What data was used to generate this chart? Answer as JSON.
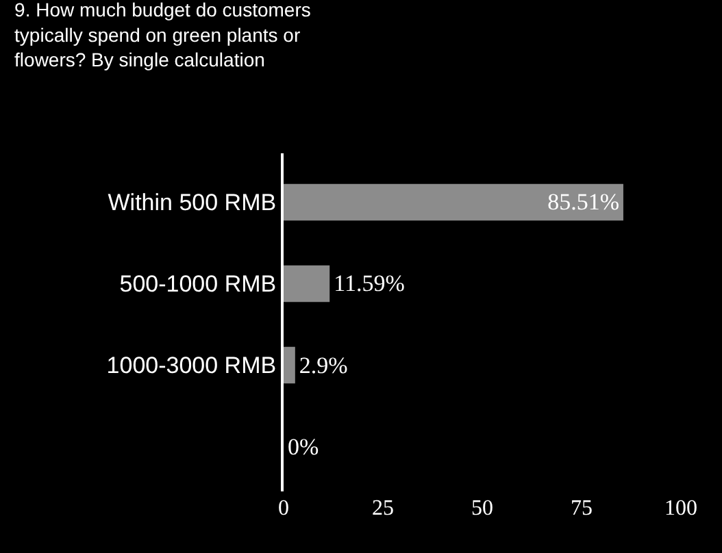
{
  "chart_data": {
    "type": "bar",
    "orientation": "horizontal",
    "title": "9. How much budget do customers\ntypically spend on green plants or\nflowers? By single calculation",
    "categories": [
      "Within 500 RMB",
      "500-1000 RMB",
      "1000-3000 RMB",
      null
    ],
    "values": [
      85.51,
      11.59,
      2.9,
      0
    ],
    "value_labels": [
      "85.51%",
      "11.59%",
      "2.9%",
      "0%"
    ],
    "color": "#8c8c8c",
    "xlim": [
      0,
      100
    ],
    "xticks": [
      0,
      25,
      50,
      75,
      100
    ],
    "grid": false,
    "legend": false
  }
}
